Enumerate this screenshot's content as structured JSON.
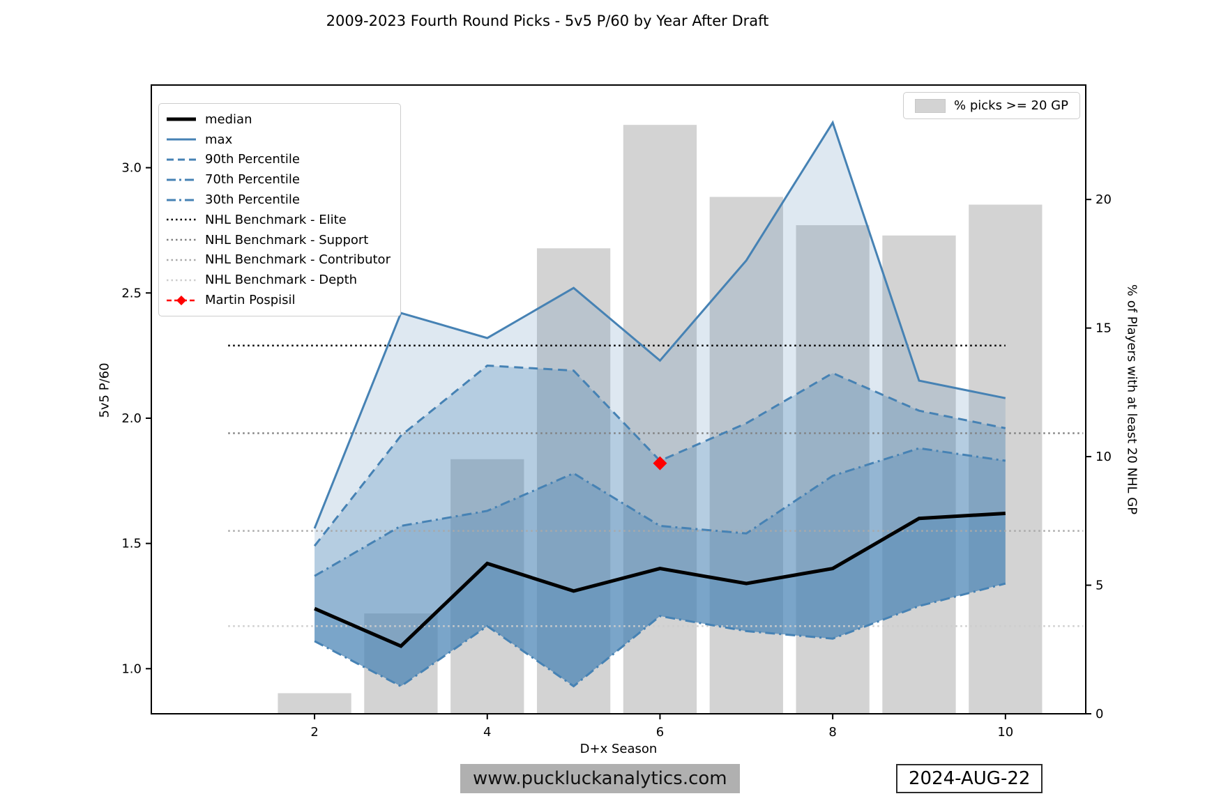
{
  "chart_data": {
    "type": "line+bar",
    "title": "2009-2023 Fourth Round Picks - 5v5 P/60 by Year After Draft",
    "xlabel": "D+x Season",
    "ylabel_left": "5v5 P/60",
    "ylabel_right": "% of Players with at least 20 NHL GP",
    "x": [
      2,
      3,
      4,
      5,
      6,
      7,
      8,
      9,
      10
    ],
    "x_range": [
      0.11,
      10.93
    ],
    "y_left_range": [
      0.82,
      3.33
    ],
    "y_right_range": [
      0,
      24.45
    ],
    "x_ticks": [
      "2",
      "4",
      "6",
      "8",
      "10"
    ],
    "x_tick_values": [
      2,
      4,
      6,
      8,
      10
    ],
    "y_left_ticks": [
      "1.0",
      "1.5",
      "2.0",
      "2.5",
      "3.0"
    ],
    "y_left_tick_values": [
      1.0,
      1.5,
      2.0,
      2.5,
      3.0
    ],
    "y_right_ticks": [
      "0",
      "5",
      "10",
      "15",
      "20"
    ],
    "y_right_tick_values": [
      0,
      5,
      10,
      15,
      20
    ],
    "grid": false,
    "series": [
      {
        "name": "median",
        "color": "#000000",
        "width": 5,
        "dash": null,
        "values": [
          1.24,
          1.09,
          1.42,
          1.31,
          1.4,
          1.34,
          1.4,
          1.6,
          1.62
        ]
      },
      {
        "name": "max",
        "color": "#4682b4",
        "width": 3,
        "dash": null,
        "values": [
          1.56,
          2.42,
          2.32,
          2.52,
          2.23,
          2.63,
          3.18,
          2.15,
          2.08
        ]
      },
      {
        "name": "90th Percentile",
        "color": "#4682b4",
        "width": 3,
        "dash": "13 8",
        "values": [
          1.49,
          1.93,
          2.21,
          2.19,
          1.83,
          1.98,
          2.18,
          2.03,
          1.96
        ]
      },
      {
        "name": "70th Percentile",
        "color": "#4682b4",
        "width": 3,
        "dash": "14 6 3 6",
        "values": [
          1.37,
          1.57,
          1.63,
          1.78,
          1.57,
          1.54,
          1.77,
          1.88,
          1.83
        ]
      },
      {
        "name": "30th Percentile",
        "color": "#4682b4",
        "width": 3,
        "dash": "14 6 3 6",
        "values": [
          1.11,
          0.93,
          1.17,
          0.93,
          1.21,
          1.15,
          1.12,
          1.25,
          1.34
        ]
      }
    ],
    "bands": [
      {
        "upper": "max",
        "lower": "90th Percentile",
        "opacity": 0.18
      },
      {
        "upper": "90th Percentile",
        "lower": "70th Percentile",
        "opacity": 0.4
      },
      {
        "upper": "70th Percentile",
        "lower": "median",
        "opacity": 0.58
      },
      {
        "upper": "median",
        "lower": "30th Percentile",
        "opacity": 0.72
      }
    ],
    "band_color": "#4682b4",
    "benchmarks": [
      {
        "label": "NHL Benchmark - Elite",
        "value": 2.29,
        "color": "#000000",
        "x_start": 1,
        "x_end": 10
      },
      {
        "label": "NHL Benchmark - Support",
        "value": 1.94,
        "color": "#808080",
        "x_start": 1,
        "x_end": 10.9
      },
      {
        "label": "NHL Benchmark - Contributor",
        "value": 1.55,
        "color": "#a9a9a9",
        "x_start": 1,
        "x_end": 10.9
      },
      {
        "label": "NHL Benchmark - Depth",
        "value": 1.17,
        "color": "#cdcdcd",
        "x_start": 1,
        "x_end": 10.9
      }
    ],
    "player_point": {
      "label": "Martin Pospisil",
      "x": 6,
      "value": 1.82,
      "color": "#ff0000"
    },
    "bars": {
      "legend_label": "% picks >= 20 GP",
      "color": "#d3d3d3",
      "width": 0.85,
      "values": [
        0.8,
        3.9,
        9.9,
        18.1,
        22.9,
        20.1,
        19.0,
        18.6,
        19.8
      ]
    }
  },
  "legend": {
    "items": [
      {
        "label": "median",
        "color": "#000000",
        "width": 5,
        "dash": null,
        "marker": null
      },
      {
        "label": "max",
        "color": "#4682b4",
        "width": 3,
        "dash": null,
        "marker": null
      },
      {
        "label": "90th Percentile",
        "color": "#4682b4",
        "width": 3,
        "dash": "10 6",
        "marker": null
      },
      {
        "label": "70th Percentile",
        "color": "#4682b4",
        "width": 3,
        "dash": "13 5 3 5",
        "marker": null
      },
      {
        "label": "30th Percentile",
        "color": "#4682b4",
        "width": 3,
        "dash": "13 5 3 5",
        "marker": null
      },
      {
        "label": "NHL Benchmark - Elite",
        "color": "#000000",
        "width": 2.5,
        "dash": "2.5 4",
        "marker": null
      },
      {
        "label": "NHL Benchmark - Support",
        "color": "#808080",
        "width": 2.5,
        "dash": "2.5 4",
        "marker": null
      },
      {
        "label": "NHL Benchmark - Contributor",
        "color": "#a9a9a9",
        "width": 2.5,
        "dash": "2.5 4",
        "marker": null
      },
      {
        "label": "NHL Benchmark - Depth",
        "color": "#cdcdcd",
        "width": 2.5,
        "dash": "2.5 4",
        "marker": null
      },
      {
        "label": "Martin Pospisil",
        "color": "#ff0000",
        "width": 2.5,
        "dash": "7 4",
        "marker": "diamond"
      }
    ]
  },
  "bars_legend": {
    "label": "% picks >= 20 GP",
    "swatch_color": "#d3d3d3"
  },
  "footer": {
    "website": "www.puckluckanalytics.com",
    "date": "2024-AUG-22"
  }
}
